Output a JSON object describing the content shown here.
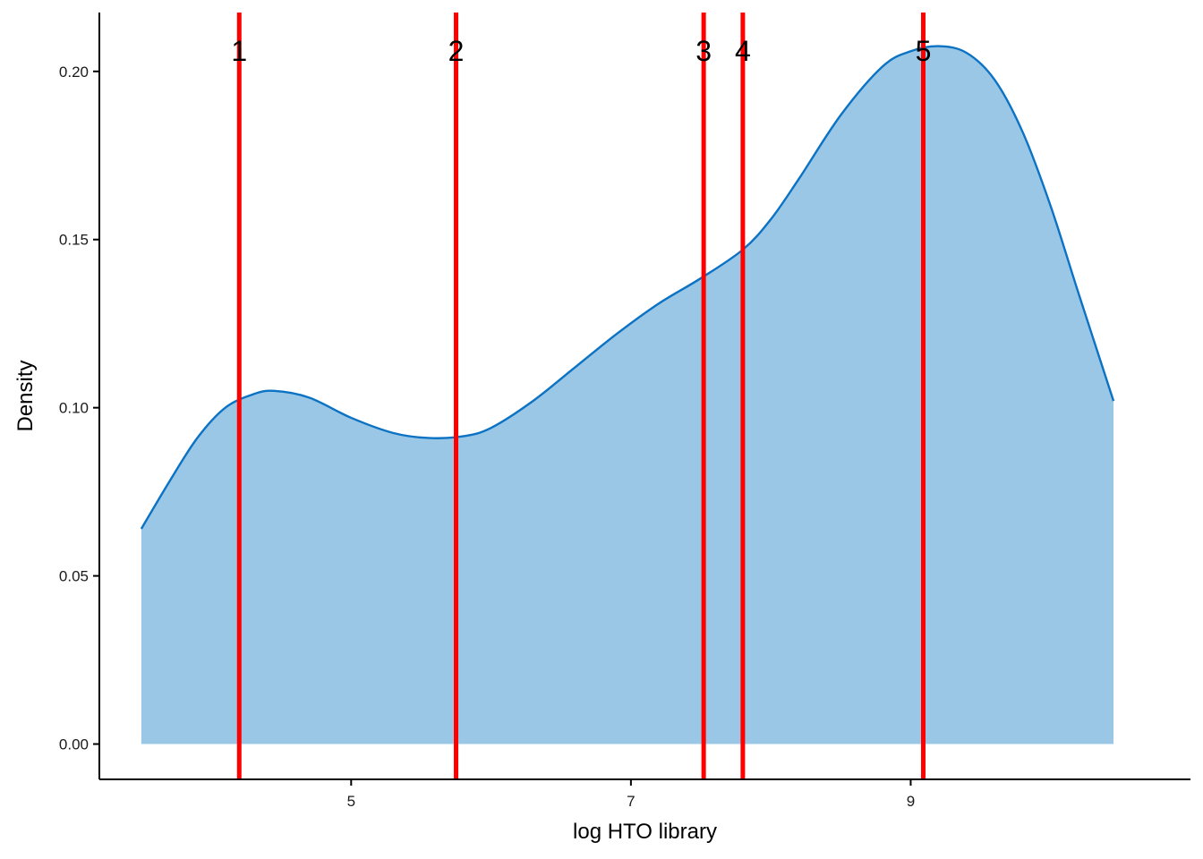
{
  "chart_data": {
    "type": "area",
    "title": "",
    "xlabel": "log HTO library",
    "ylabel": "Density",
    "xlim": [
      3.2,
      11.0
    ],
    "ylim": [
      -0.0105,
      0.2175
    ],
    "x_ticks": [
      5,
      7,
      9
    ],
    "y_ticks": [
      0.0,
      0.05,
      0.1,
      0.15,
      0.2
    ],
    "y_tick_labels": [
      "0.00",
      "0.05",
      "0.10",
      "0.15",
      "0.20"
    ],
    "grid": false,
    "legend": "none",
    "fill_color": "#9ac7e6",
    "line_color": "#0b72c4",
    "vline_color": "#ff0000",
    "density": {
      "x": [
        3.5,
        3.7,
        3.9,
        4.1,
        4.3,
        4.45,
        4.7,
        5.0,
        5.3,
        5.55,
        5.8,
        6.0,
        6.3,
        6.6,
        6.9,
        7.2,
        7.5,
        7.8,
        8.0,
        8.2,
        8.5,
        8.8,
        9.0,
        9.2,
        9.4,
        9.6,
        9.8,
        10.0,
        10.2,
        10.45
      ],
      "y": [
        0.064,
        0.078,
        0.091,
        0.1,
        0.104,
        0.105,
        0.103,
        0.097,
        0.0925,
        0.091,
        0.0915,
        0.094,
        0.102,
        0.112,
        0.122,
        0.131,
        0.1385,
        0.147,
        0.156,
        0.168,
        0.187,
        0.2015,
        0.206,
        0.2075,
        0.2055,
        0.1975,
        0.182,
        0.16,
        0.134,
        0.102
      ]
    },
    "vlines": [
      {
        "label": "1",
        "x": 4.2
      },
      {
        "label": "2",
        "x": 5.75
      },
      {
        "label": "3",
        "x": 7.52
      },
      {
        "label": "4",
        "x": 7.8
      },
      {
        "label": "5",
        "x": 9.09
      }
    ]
  }
}
